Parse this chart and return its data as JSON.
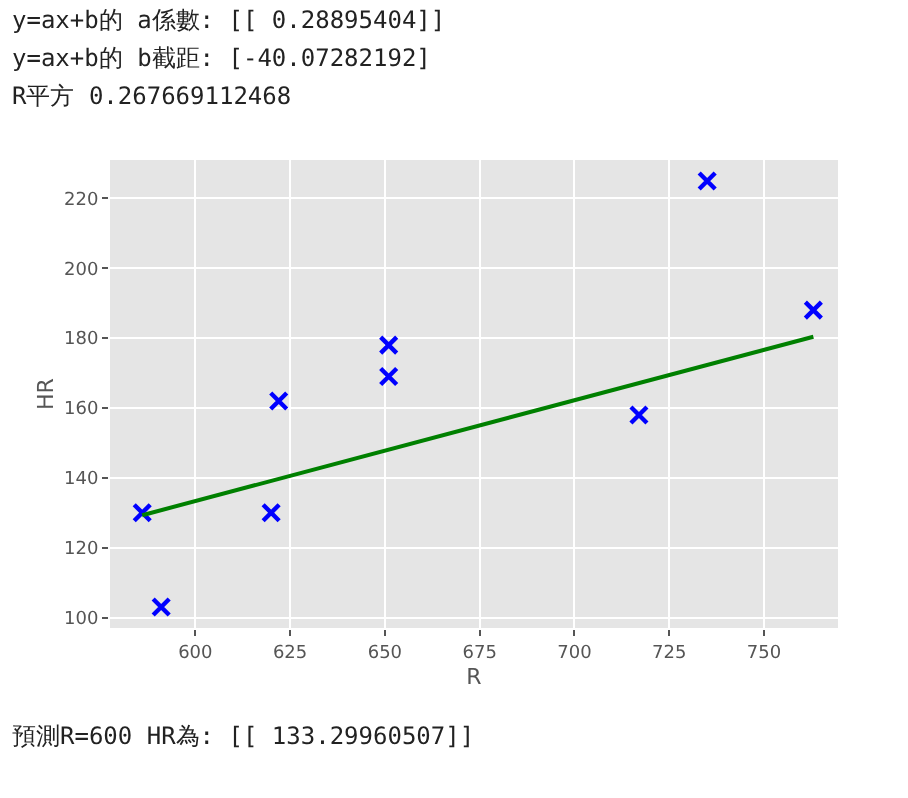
{
  "chart_data": {
    "type": "scatter",
    "xlabel": "R",
    "ylabel": "HR",
    "annotations": [
      "y=ax+b的 a係數: [[ 0.28895404]]",
      "y=ax+b的 b截距: [-40.07282192]",
      "R平方 0.267669112468",
      "預測R=600 HR為: [[ 133.29960507]]"
    ],
    "x": [
      586,
      591,
      620,
      622,
      651,
      651,
      717,
      735,
      763
    ],
    "series": [
      {
        "color": "#0000ff",
        "marker": "cross",
        "values": [
          130,
          103,
          130,
          162,
          178,
          169,
          158,
          225,
          188
        ]
      },
      {
        "type": "line",
        "color": "#008000",
        "x": [
          586,
          763
        ],
        "values": [
          129.3,
          180.4
        ]
      }
    ],
    "xlim": [
      577.5,
      769.5
    ],
    "ylim": [
      97,
      231
    ],
    "xticks": [
      600,
      625,
      650,
      675,
      700,
      725,
      750
    ],
    "yticks": [
      100,
      120,
      140,
      160,
      180,
      200,
      220
    ],
    "grid": true
  }
}
